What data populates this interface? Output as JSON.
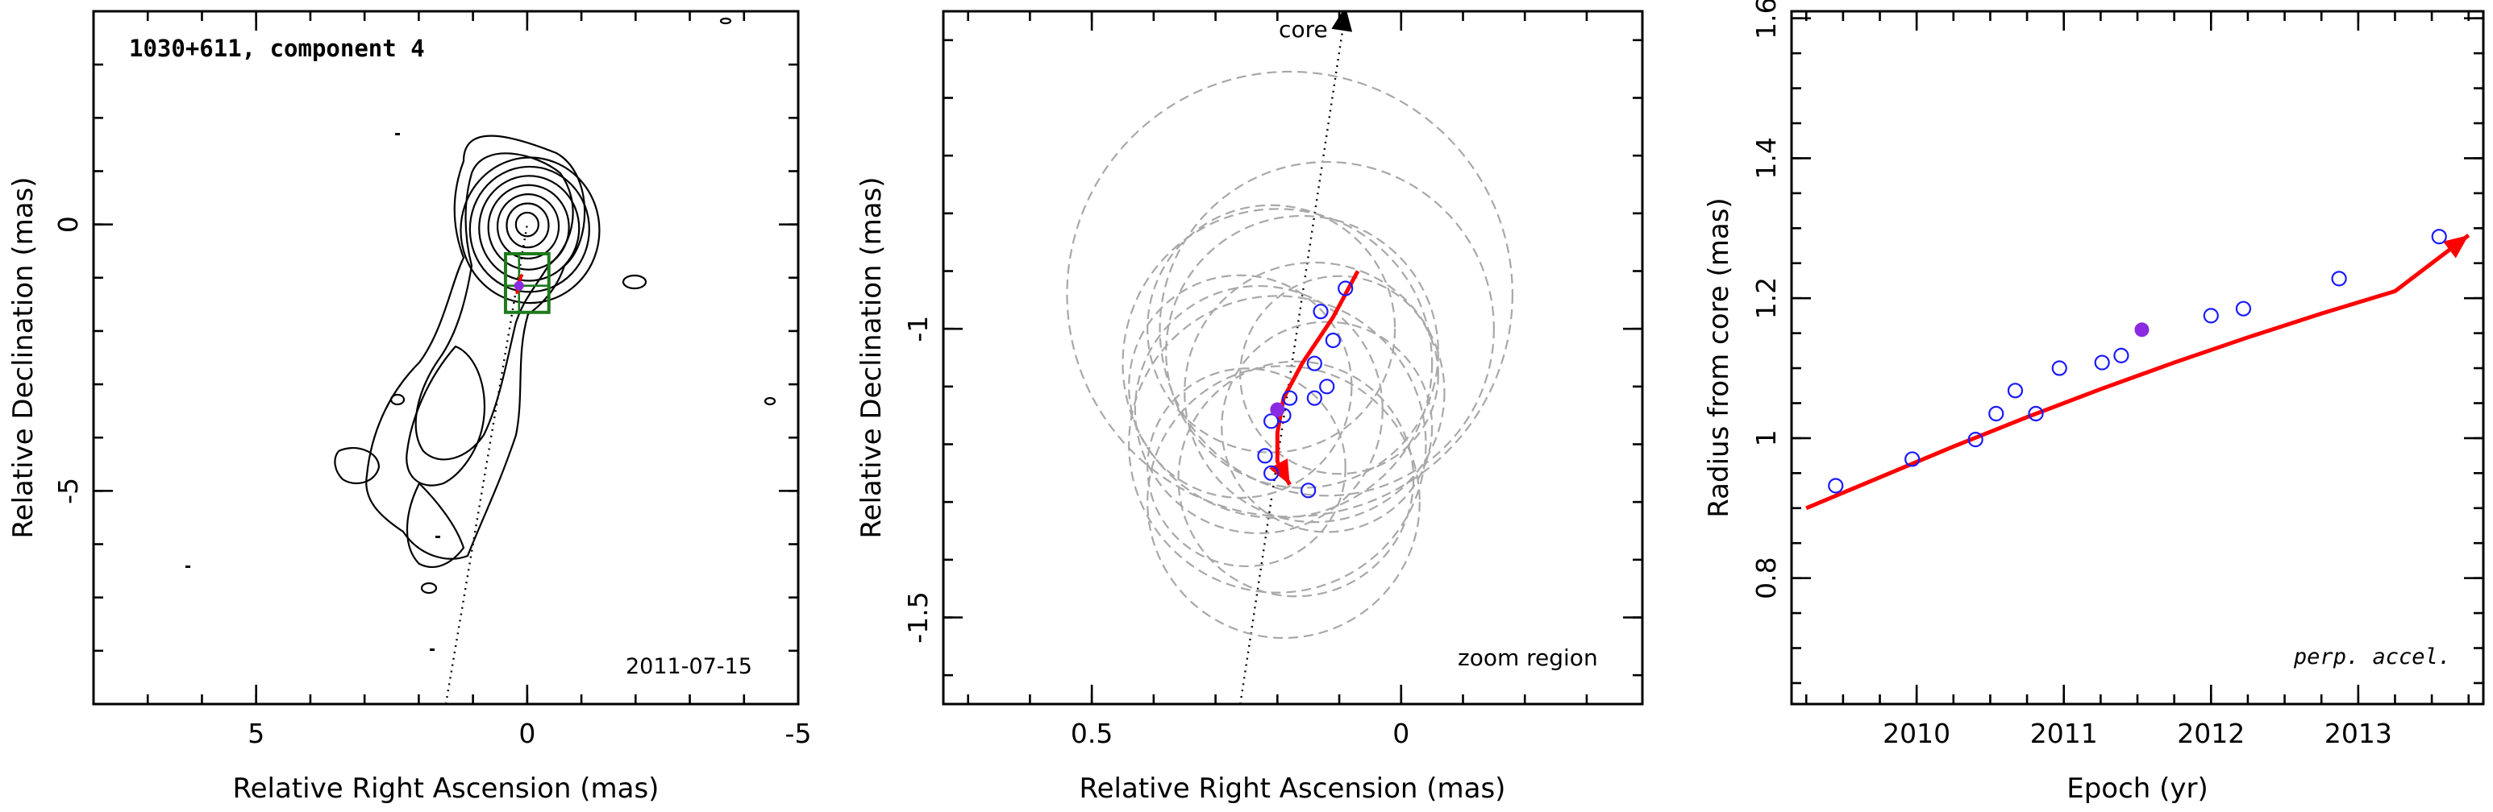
{
  "colors": {
    "path": "#ff0000",
    "points": "#1a1aff",
    "current_point": "#8a2be2",
    "box": "#1e7a1e",
    "circles": "#a8a8a8",
    "contours": "#000000"
  },
  "chart_data": [
    {
      "type": "contour",
      "panel": "map",
      "title": "1030+611, component 4",
      "date": "2011-07-15",
      "xlabel": "Relative Right Ascension (mas)",
      "ylabel": "Relative Declination (mas)",
      "xlim": [
        8.0,
        -5.0
      ],
      "ylim": [
        -9.0,
        4.0
      ],
      "xticks": [
        5,
        0,
        -5
      ],
      "yticks": [
        0,
        -5
      ],
      "component_position": [
        0.15,
        -1.15
      ],
      "zoom_box": {
        "ra": [
          0.4,
          -0.4
        ],
        "dec": [
          -0.55,
          -1.65
        ]
      },
      "jet_axis": [
        [
          1.5,
          -9.0
        ],
        [
          0.0,
          0.0
        ]
      ]
    },
    {
      "type": "scatter",
      "panel": "zoom",
      "annotation": "zoom region",
      "core_label": "core",
      "xlabel": "Relative Right Ascension (mas)",
      "ylabel": "Relative Declination (mas)",
      "xlim": [
        0.74,
        -0.39
      ],
      "ylim": [
        -1.65,
        -0.45
      ],
      "xticks": [
        0.5,
        0
      ],
      "yticks": [
        -1,
        -1.5
      ],
      "points_ra": [
        0.09,
        0.11,
        0.13,
        0.14,
        0.12,
        0.14,
        0.18,
        0.19,
        0.21,
        0.22,
        0.21,
        0.15
      ],
      "points_dec": [
        -0.93,
        -1.02,
        -0.97,
        -1.06,
        -1.1,
        -1.12,
        -1.12,
        -1.15,
        -1.16,
        -1.22,
        -1.25,
        -1.28
      ],
      "current_point": [
        0.2,
        -1.14
      ],
      "fit_path_ra": [
        0.07,
        0.11,
        0.16,
        0.19,
        0.2,
        0.2,
        0.18
      ],
      "fit_path_dec": [
        -0.9,
        -0.98,
        -1.06,
        -1.12,
        -1.18,
        -1.23,
        -1.27
      ],
      "circles": [
        {
          "ra": 0.18,
          "dec": -0.94,
          "r": 0.36
        },
        {
          "ra": 0.12,
          "dec": -1.0,
          "r": 0.27
        },
        {
          "ra": 0.2,
          "dec": -1.06,
          "r": 0.25
        },
        {
          "ra": 0.16,
          "dec": -1.04,
          "r": 0.22
        },
        {
          "ra": 0.26,
          "dec": -1.1,
          "r": 0.18
        },
        {
          "ra": 0.14,
          "dec": -1.11,
          "r": 0.21
        },
        {
          "ra": 0.23,
          "dec": -1.14,
          "r": 0.2
        },
        {
          "ra": 0.12,
          "dec": -1.17,
          "r": 0.17
        },
        {
          "ra": 0.2,
          "dec": -1.2,
          "r": 0.24
        },
        {
          "ra": 0.17,
          "dec": -1.26,
          "r": 0.19
        },
        {
          "ra": 0.25,
          "dec": -1.24,
          "r": 0.16
        },
        {
          "ra": 0.1,
          "dec": -1.08,
          "r": 0.16
        },
        {
          "ra": 0.21,
          "dec": -1.0,
          "r": 0.2
        },
        {
          "ra": 0.19,
          "dec": -1.3,
          "r": 0.22
        }
      ],
      "jet_axis": [
        [
          0.26,
          -1.65
        ],
        [
          0.09,
          -0.45
        ]
      ]
    },
    {
      "type": "scatter",
      "panel": "radius",
      "annotation": "perp. accel.",
      "xlabel": "Epoch (yr)",
      "ylabel": "Radius from core (mas)",
      "xlim": [
        2009.15,
        2013.85
      ],
      "ylim": [
        0.62,
        1.61
      ],
      "xticks": [
        2010,
        2011,
        2012,
        2013
      ],
      "yticks": [
        0.8,
        1,
        1.2,
        1.4,
        1.6
      ],
      "ytick_labels": [
        "0.8",
        "1",
        "1.2",
        "1.4",
        "1.6"
      ],
      "epochs": [
        2009.45,
        2009.97,
        2010.4,
        2010.54,
        2010.67,
        2010.81,
        2010.97,
        2011.26,
        2011.39,
        2012.0,
        2012.22,
        2012.87,
        2013.55
      ],
      "radius": [
        0.932,
        0.97,
        0.998,
        1.035,
        1.068,
        1.035,
        1.1,
        1.108,
        1.118,
        1.175,
        1.185,
        1.228,
        1.288
      ],
      "current_point": [
        2011.53,
        1.155
      ],
      "fit_x": [
        2009.25,
        2009.75,
        2010.25,
        2010.75,
        2011.25,
        2011.75,
        2012.25,
        2012.75,
        2013.25,
        2013.75
      ],
      "fit_y": [
        0.9,
        0.944,
        0.988,
        1.03,
        1.07,
        1.108,
        1.144,
        1.178,
        1.21,
        1.29
      ]
    }
  ]
}
